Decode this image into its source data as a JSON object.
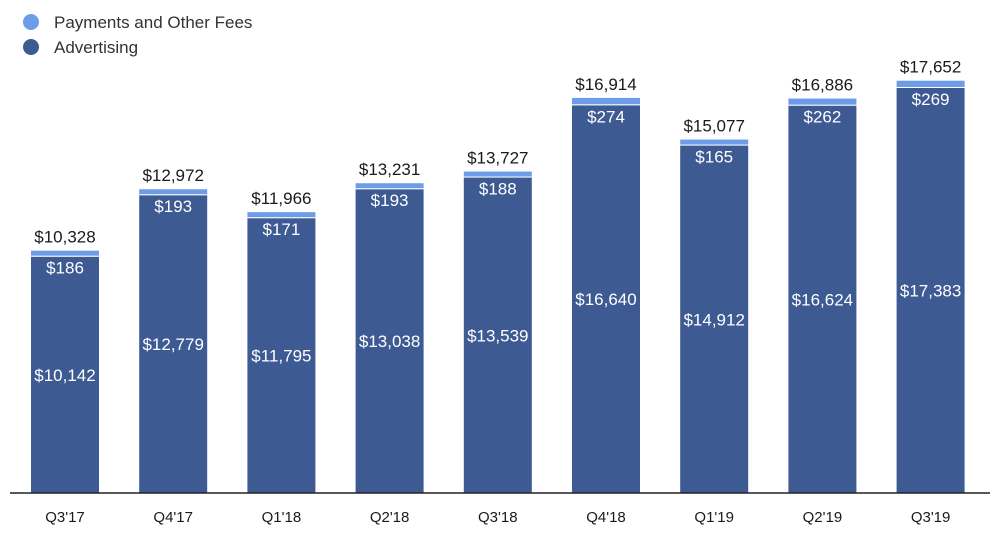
{
  "chart_data": {
    "type": "bar",
    "stacked": true,
    "categories": [
      "Q3'17",
      "Q4'17",
      "Q1'18",
      "Q2'18",
      "Q3'18",
      "Q4'18",
      "Q1'19",
      "Q2'19",
      "Q3'19"
    ],
    "series": [
      {
        "name": "Advertising",
        "color": "#3e5a93",
        "values": [
          10142,
          12779,
          11795,
          13038,
          13539,
          16640,
          14912,
          16624,
          17383
        ],
        "labels": [
          "$10,142",
          "$12,779",
          "$11,795",
          "$13,038",
          "$13,539",
          "$16,640",
          "$14,912",
          "$16,624",
          "$17,383"
        ]
      },
      {
        "name": "Payments and Other Fees",
        "color": "#6d9ce8",
        "values": [
          186,
          193,
          171,
          193,
          188,
          274,
          165,
          262,
          269
        ],
        "labels": [
          "$186",
          "$193",
          "$171",
          "$193",
          "$188",
          "$274",
          "$165",
          "$262",
          "$269"
        ]
      }
    ],
    "totals": [
      10328,
      12972,
      11966,
      13231,
      13727,
      16914,
      15077,
      16886,
      17652
    ],
    "total_labels": [
      "$10,328",
      "$12,972",
      "$11,966",
      "$13,231",
      "$13,727",
      "$16,914",
      "$15,077",
      "$16,886",
      "$17,652"
    ],
    "legend": {
      "position": "top-left",
      "entries": [
        "Payments and Other Fees",
        "Advertising"
      ]
    },
    "ylim": [
      0,
      19000
    ],
    "grid": false
  }
}
